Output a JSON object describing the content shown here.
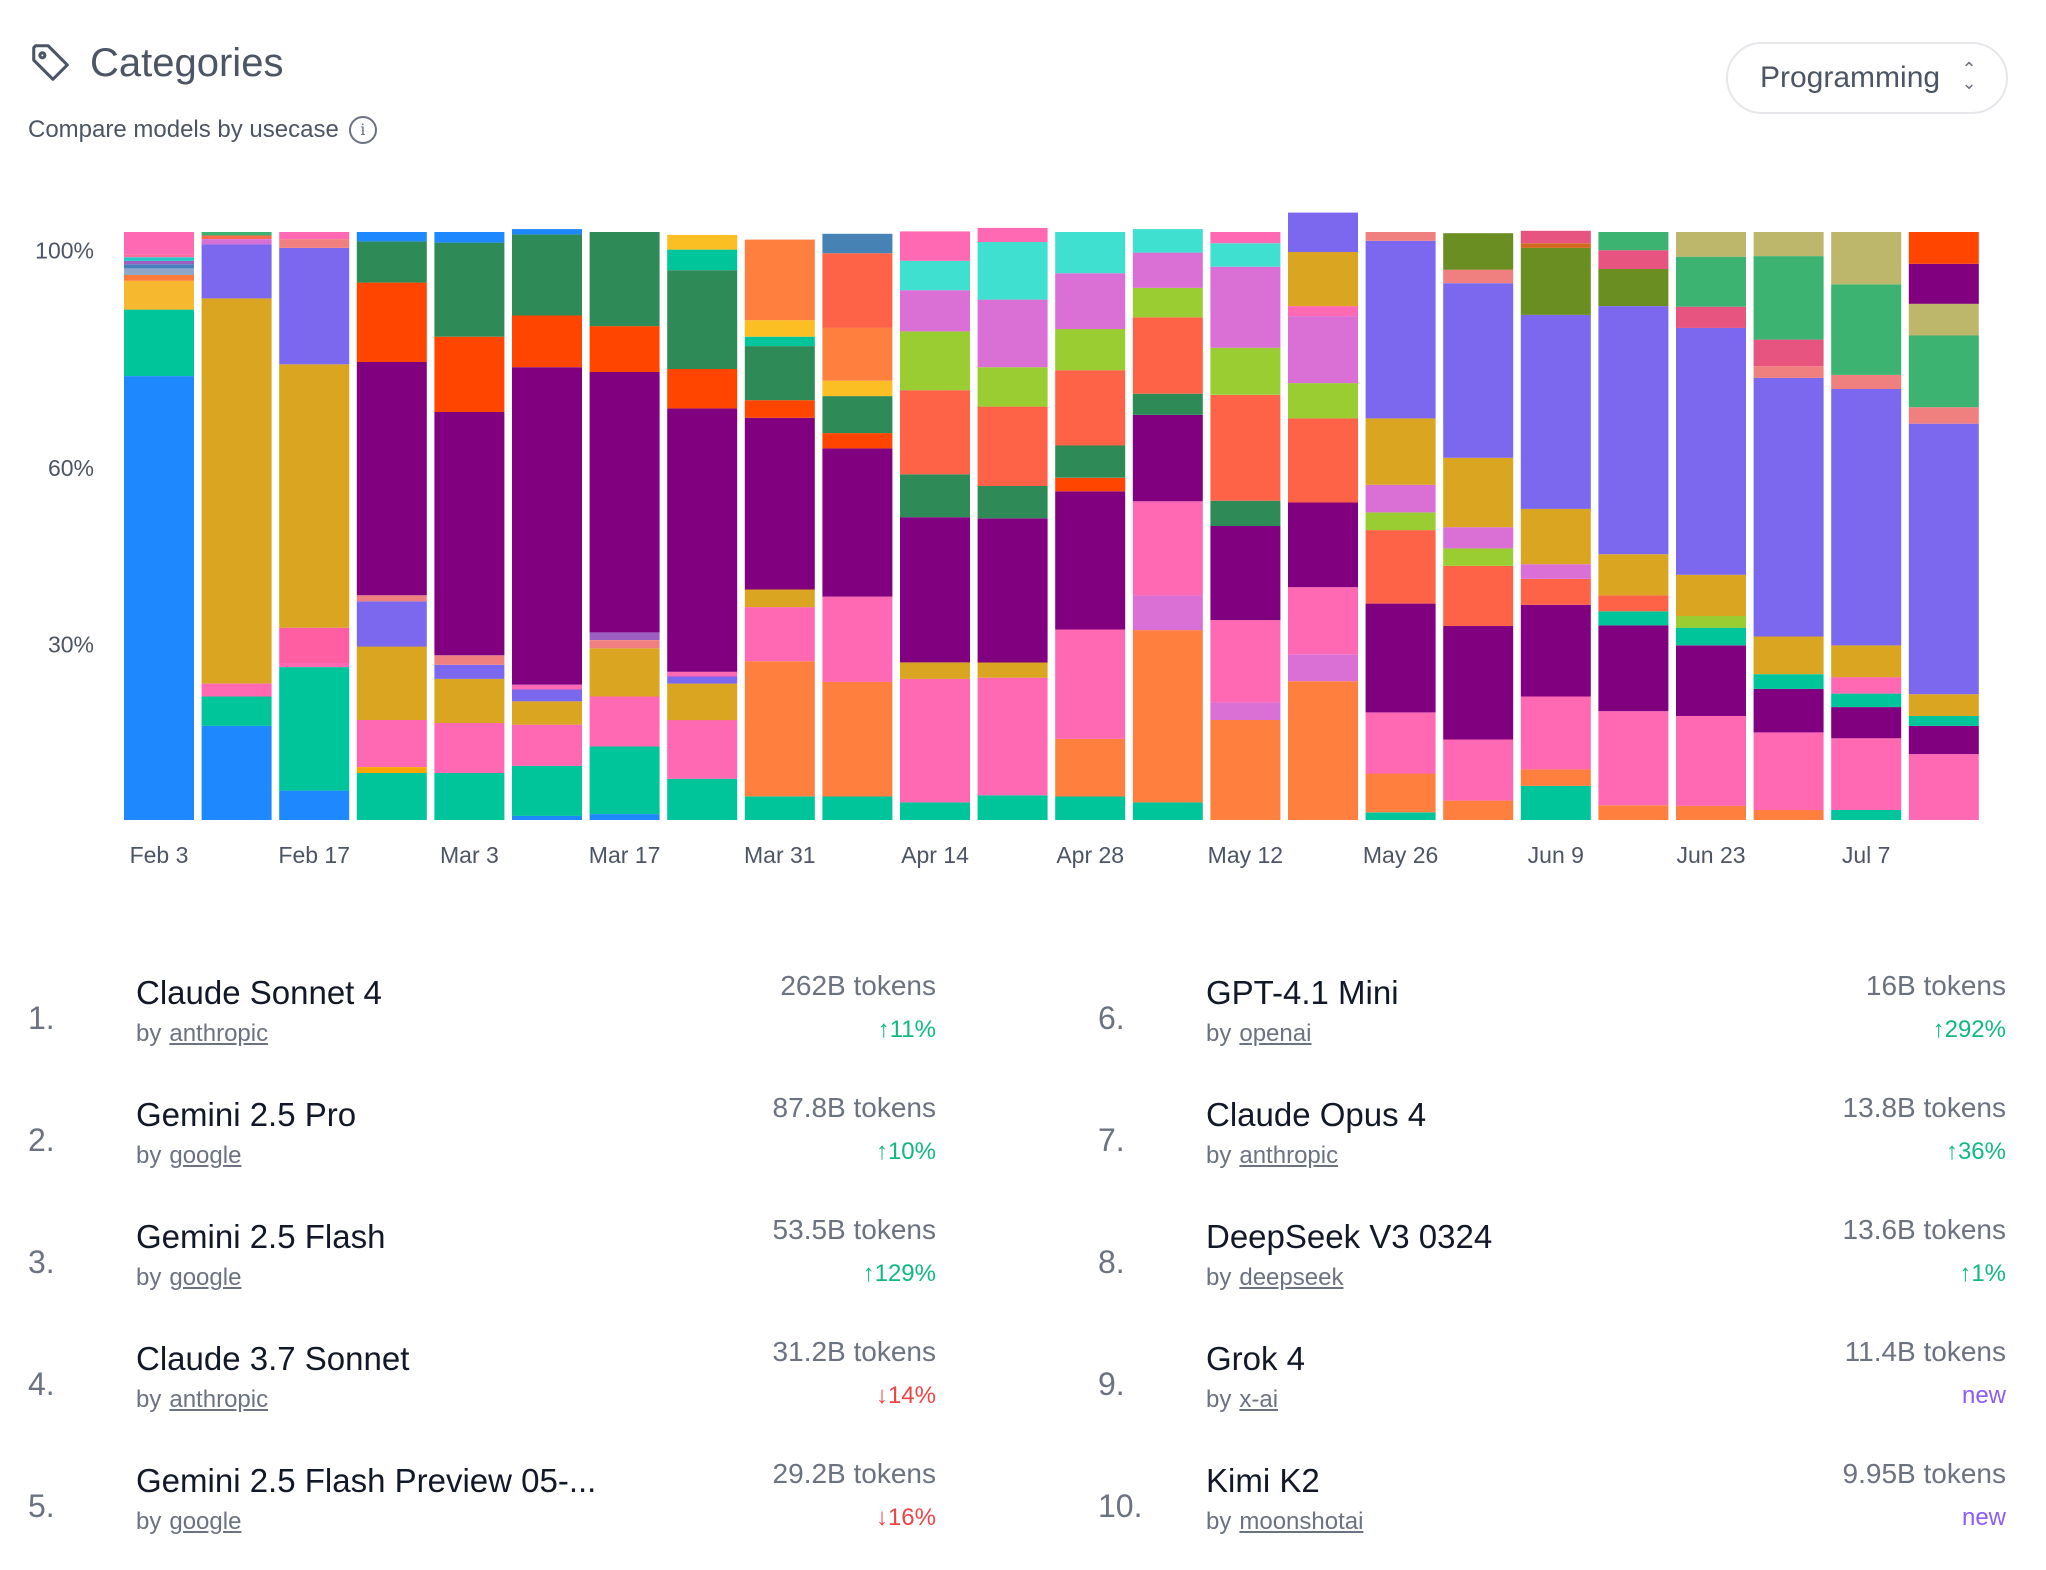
{
  "header": {
    "title": "Categories",
    "subtitle": "Compare models by usecase",
    "tag_icon": "tag-icon",
    "info_icon": "info-icon"
  },
  "category_select": {
    "value": "Programming",
    "icon": "chevron-up-down-icon"
  },
  "chart_data": {
    "type": "bar",
    "stacked": true,
    "ylim": [
      0,
      100
    ],
    "y_ticks": [
      "100%",
      "60%",
      "30%"
    ],
    "y_tick_values": [
      97,
      60,
      30
    ],
    "x_tick_labels": [
      "Feb 3",
      "Feb 17",
      "Mar 3",
      "Mar 17",
      "Mar 31",
      "Apr 14",
      "Apr 28",
      "May 12",
      "May 26",
      "Jun 9",
      "Jun 23",
      "Jul 7"
    ],
    "x_tick_indices": [
      0,
      2,
      4,
      6,
      8,
      10,
      12,
      14,
      16,
      18,
      20,
      22
    ],
    "weeks": 24,
    "columns": [
      [
        [
          "#1e88ff",
          75.5
        ],
        [
          "#00c49a",
          11.3
        ],
        [
          "#f5b82e",
          4.9
        ],
        [
          "#ff7b3a",
          1
        ],
        [
          "#8fa7c9",
          1.1
        ],
        [
          "#4a7fc0",
          0.7
        ],
        [
          "#9a5fc1",
          0.6
        ],
        [
          "#1ec8c8",
          0.6
        ],
        [
          "#ff6a9e",
          0.5
        ],
        [
          "#ff69b4",
          3.8
        ]
      ],
      [
        [
          "#1e88ff",
          16
        ],
        [
          "#00c49a",
          5
        ],
        [
          "#ff69b4",
          2.2
        ],
        [
          "#daa520",
          65.5
        ],
        [
          "#7b68ee",
          9.2
        ],
        [
          "#d670d6",
          0.9
        ],
        [
          "#ff6b4a",
          0.6
        ],
        [
          "#3cb371",
          0.6
        ]
      ],
      [
        [
          "#1e88ff",
          5
        ],
        [
          "#00c49a",
          21
        ],
        [
          "#ff69b4",
          0.7
        ],
        [
          "#ff5fa2",
          6
        ],
        [
          "#daa520",
          44.8
        ],
        [
          "#7b68ee",
          19.8
        ],
        [
          "#f08080",
          1.5
        ],
        [
          "#ff69b4",
          1.2
        ]
      ],
      [
        [
          "#00c49a",
          8
        ],
        [
          "#ffa500",
          1
        ],
        [
          "#ff69b4",
          8
        ],
        [
          "#daa520",
          12.5
        ],
        [
          "#7b68ee",
          7.7
        ],
        [
          "#f08080",
          1
        ],
        [
          "#800080",
          39.7
        ],
        [
          "#ff4500",
          13.5
        ],
        [
          "#2e8b57",
          7
        ],
        [
          "#1e88ff",
          1.6
        ]
      ],
      [
        [
          "#00c49a",
          8
        ],
        [
          "#ff69b4",
          8.5
        ],
        [
          "#daa520",
          7.5
        ],
        [
          "#7b68ee",
          2.4
        ],
        [
          "#f08080",
          1.6
        ],
        [
          "#800080",
          41.4
        ],
        [
          "#ff4500",
          12.8
        ],
        [
          "#2e8b57",
          16
        ],
        [
          "#1e88ff",
          1.8
        ]
      ],
      [
        [
          "#1e88ff",
          0.7
        ],
        [
          "#00c49a",
          8.5
        ],
        [
          "#ff69b4",
          7
        ],
        [
          "#daa520",
          4
        ],
        [
          "#7b68ee",
          2
        ],
        [
          "#ff69b4",
          0.8
        ],
        [
          "#800080",
          54
        ],
        [
          "#ff4500",
          8.8
        ],
        [
          "#2e8b57",
          13.8
        ],
        [
          "#1e88ff",
          0.9
        ]
      ],
      [
        [
          "#1e88ff",
          1
        ],
        [
          "#00c49a",
          11.5
        ],
        [
          "#ff69b4",
          8.5
        ],
        [
          "#daa520",
          8.2
        ],
        [
          "#f08080",
          1.4
        ],
        [
          "#9a5fc1",
          1.3
        ],
        [
          "#800080",
          44.3
        ],
        [
          "#ff4500",
          7.8
        ],
        [
          "#2e8b57",
          16
        ]
      ],
      [
        [
          "#00c49a",
          7
        ],
        [
          "#ff69b4",
          10
        ],
        [
          "#daa520",
          6.2
        ],
        [
          "#7b68ee",
          1.2
        ],
        [
          "#ff69b4",
          0.8
        ],
        [
          "#800080",
          44.8
        ],
        [
          "#ff4500",
          6.7
        ],
        [
          "#2e8b57",
          16.8
        ],
        [
          "#00c49a",
          3.5
        ],
        [
          "#fbbf24",
          2.5
        ]
      ],
      [
        [
          "#00c49a",
          4
        ],
        [
          "#ff7f3f",
          23
        ],
        [
          "#ff69b4",
          9.2
        ],
        [
          "#daa520",
          3
        ],
        [
          "#800080",
          29.2
        ],
        [
          "#ff4500",
          3
        ],
        [
          "#2e8b57",
          9.2
        ],
        [
          "#00c49a",
          1.6
        ],
        [
          "#fbbf24",
          2.8
        ],
        [
          "#ff7f3f",
          13.7
        ]
      ],
      [
        [
          "#00c49a",
          4
        ],
        [
          "#ff7f3f",
          19.5
        ],
        [
          "#ff69b4",
          14.5
        ],
        [
          "#800080",
          25.2
        ],
        [
          "#ff4500",
          2.6
        ],
        [
          "#2e8b57",
          6.3
        ],
        [
          "#fbbf24",
          2.6
        ],
        [
          "#ff7f3f",
          9
        ],
        [
          "#ff6347",
          12.7
        ],
        [
          "#4682b4",
          3.3
        ]
      ],
      [
        [
          "#00c49a",
          3
        ],
        [
          "#ff69b4",
          21
        ],
        [
          "#daa520",
          2.8
        ],
        [
          "#800080",
          24.7
        ],
        [
          "#2e8b57",
          7.3
        ],
        [
          "#ff6347",
          14.3
        ],
        [
          "#9acd32",
          10
        ],
        [
          "#da70d6",
          7
        ],
        [
          "#40e0d0",
          5
        ],
        [
          "#ff69b4",
          5
        ]
      ],
      [
        [
          "#00c49a",
          4.2
        ],
        [
          "#ff69b4",
          20
        ],
        [
          "#daa520",
          2.6
        ],
        [
          "#800080",
          24.5
        ],
        [
          "#2e8b57",
          5.5
        ],
        [
          "#ff6347",
          13.5
        ],
        [
          "#9acd32",
          6.7
        ],
        [
          "#da70d6",
          11.5
        ],
        [
          "#40e0d0",
          9.8
        ],
        [
          "#ff69b4",
          2.4
        ]
      ],
      [
        [
          "#00c49a",
          4
        ],
        [
          "#ff7f3f",
          9.8
        ],
        [
          "#ff69b4",
          18.6
        ],
        [
          "#800080",
          23.5
        ],
        [
          "#ff4500",
          2.3
        ],
        [
          "#2e8b57",
          5.5
        ],
        [
          "#ff6347",
          12.8
        ],
        [
          "#9acd32",
          7
        ],
        [
          "#da70d6",
          9.5
        ],
        [
          "#40e0d0",
          7
        ]
      ],
      [
        [
          "#00c49a",
          3
        ],
        [
          "#ff7f3f",
          29.3
        ],
        [
          "#da70d6",
          5.9
        ],
        [
          "#ff69b4",
          16
        ],
        [
          "#800080",
          14.7
        ],
        [
          "#2e8b57",
          3.6
        ],
        [
          "#ff6347",
          13
        ],
        [
          "#9acd32",
          5
        ],
        [
          "#da70d6",
          6
        ],
        [
          "#40e0d0",
          4
        ]
      ],
      [
        [
          "#ff7f3f",
          17
        ],
        [
          "#da70d6",
          3
        ],
        [
          "#ff69b4",
          14
        ],
        [
          "#800080",
          16
        ],
        [
          "#2e8b57",
          4.3
        ],
        [
          "#ff6347",
          18
        ],
        [
          "#9acd32",
          8
        ],
        [
          "#da70d6",
          13.8
        ],
        [
          "#40e0d0",
          4
        ],
        [
          "#ff69b4",
          1.9
        ]
      ],
      [
        [
          "#ff7f3f",
          23.6
        ],
        [
          "#da70d6",
          4.6
        ],
        [
          "#ff69b4",
          11.4
        ],
        [
          "#800080",
          14.4
        ],
        [
          "#ff6347",
          14.3
        ],
        [
          "#9acd32",
          6
        ],
        [
          "#da70d6",
          11.4
        ],
        [
          "#ff69b4",
          1.7
        ],
        [
          "#daa520",
          9.2
        ],
        [
          "#7b68ee",
          6.7
        ]
      ],
      [
        [
          "#00c49a",
          1.3
        ],
        [
          "#ff7f3f",
          6.6
        ],
        [
          "#ff69b4",
          10.4
        ],
        [
          "#800080",
          18.5
        ],
        [
          "#ff6347",
          12.5
        ],
        [
          "#9acd32",
          3
        ],
        [
          "#da70d6",
          4.7
        ],
        [
          "#daa520",
          11.3
        ],
        [
          "#7b68ee",
          30.2
        ],
        [
          "#f08080",
          1.5
        ]
      ],
      [
        [
          "#ff7f3f",
          3.3
        ],
        [
          "#ff69b4",
          10.4
        ],
        [
          "#800080",
          19.3
        ],
        [
          "#ff6347",
          10.2
        ],
        [
          "#9acd32",
          3
        ],
        [
          "#da70d6",
          3.6
        ],
        [
          "#daa520",
          11.8
        ],
        [
          "#7b68ee",
          29.7
        ],
        [
          "#f08080",
          2.3
        ],
        [
          "#6b8e23",
          6.2
        ]
      ],
      [
        [
          "#00c49a",
          5.8
        ],
        [
          "#ff7f3f",
          2.8
        ],
        [
          "#ff69b4",
          12.4
        ],
        [
          "#800080",
          15.6
        ],
        [
          "#ff6347",
          4.4
        ],
        [
          "#da70d6",
          2.5
        ],
        [
          "#daa520",
          9.4
        ],
        [
          "#7b68ee",
          33
        ],
        [
          "#6b8e23",
          11.4
        ],
        [
          "#d2691e",
          0.8
        ],
        [
          "#e75480",
          2.1
        ]
      ],
      [
        [
          "#ff7f3f",
          2.5
        ],
        [
          "#ff69b4",
          16
        ],
        [
          "#800080",
          14.6
        ],
        [
          "#00c49a",
          2.4
        ],
        [
          "#ff6347",
          2.7
        ],
        [
          "#daa520",
          7
        ],
        [
          "#7b68ee",
          42.2
        ],
        [
          "#6b8e23",
          6.3
        ],
        [
          "#e75480",
          3.2
        ],
        [
          "#3cb371",
          3.1
        ]
      ],
      [
        [
          "#ff7f3f",
          2.4
        ],
        [
          "#ff69b4",
          15.3
        ],
        [
          "#800080",
          12
        ],
        [
          "#00c49a",
          3
        ],
        [
          "#9acd32",
          2
        ],
        [
          "#daa520",
          7
        ],
        [
          "#7b68ee",
          42
        ],
        [
          "#e75480",
          3.6
        ],
        [
          "#3cb371",
          8.5
        ],
        [
          "#bdb76b",
          4.2
        ]
      ],
      [
        [
          "#ff7f3f",
          1.7
        ],
        [
          "#ff69b4",
          13.2
        ],
        [
          "#800080",
          7.4
        ],
        [
          "#00c49a",
          2.5
        ],
        [
          "#daa520",
          6.4
        ],
        [
          "#7b68ee",
          44
        ],
        [
          "#f08080",
          2
        ],
        [
          "#e75480",
          4.5
        ],
        [
          "#3cb371",
          14.2
        ],
        [
          "#bdb76b",
          4.1
        ]
      ],
      [
        [
          "#00c49a",
          1.7
        ],
        [
          "#ff69b4",
          12.2
        ],
        [
          "#800080",
          5.3
        ],
        [
          "#00c49a",
          2.3
        ],
        [
          "#ff69b4",
          2.8
        ],
        [
          "#daa520",
          5.4
        ],
        [
          "#7b68ee",
          43.6
        ],
        [
          "#f08080",
          2.4
        ],
        [
          "#3cb371",
          15.4
        ],
        [
          "#bdb76b",
          8.9
        ]
      ],
      [
        [
          "#ff69b4",
          11.2
        ],
        [
          "#800080",
          4.8
        ],
        [
          "#00c49a",
          1.7
        ],
        [
          "#daa520",
          3.7
        ],
        [
          "#7b68ee",
          46
        ],
        [
          "#f08080",
          2.8
        ],
        [
          "#3cb371",
          12.2
        ],
        [
          "#bdb76b",
          5.4
        ],
        [
          "#800080",
          6.8
        ],
        [
          "#ff4500",
          5.4
        ]
      ]
    ]
  },
  "leaderboard": [
    {
      "rank": "1.",
      "name": "Claude Sonnet 4",
      "by": "by",
      "author": "anthropic",
      "tokens": "262B tokens",
      "arrow": "↑",
      "change": "11%",
      "trend": "up"
    },
    {
      "rank": "2.",
      "name": "Gemini 2.5 Pro",
      "by": "by",
      "author": "google",
      "tokens": "87.8B tokens",
      "arrow": "↑",
      "change": "10%",
      "trend": "up"
    },
    {
      "rank": "3.",
      "name": "Gemini 2.5 Flash",
      "by": "by",
      "author": "google",
      "tokens": "53.5B tokens",
      "arrow": "↑",
      "change": "129%",
      "trend": "up"
    },
    {
      "rank": "4.",
      "name": "Claude 3.7 Sonnet",
      "by": "by",
      "author": "anthropic",
      "tokens": "31.2B tokens",
      "arrow": "↓",
      "change": "14%",
      "trend": "down"
    },
    {
      "rank": "5.",
      "name": "Gemini 2.5 Flash Preview 05-...",
      "by": "by",
      "author": "google",
      "tokens": "29.2B tokens",
      "arrow": "↓",
      "change": "16%",
      "trend": "down"
    },
    {
      "rank": "6.",
      "name": "GPT-4.1 Mini",
      "by": "by",
      "author": "openai",
      "tokens": "16B tokens",
      "arrow": "↑",
      "change": "292%",
      "trend": "up"
    },
    {
      "rank": "7.",
      "name": "Claude Opus 4",
      "by": "by",
      "author": "anthropic",
      "tokens": "13.8B tokens",
      "arrow": "↑",
      "change": "36%",
      "trend": "up"
    },
    {
      "rank": "8.",
      "name": "DeepSeek V3 0324",
      "by": "by",
      "author": "deepseek",
      "tokens": "13.6B tokens",
      "arrow": "↑",
      "change": "1%",
      "trend": "up"
    },
    {
      "rank": "9.",
      "name": "Grok 4",
      "by": "by",
      "author": "x-ai",
      "tokens": "11.4B tokens",
      "arrow": "",
      "change": "new",
      "trend": "new"
    },
    {
      "rank": "10.",
      "name": "Kimi K2",
      "by": "by",
      "author": "moonshotai",
      "tokens": "9.95B tokens",
      "arrow": "",
      "change": "new",
      "trend": "new"
    }
  ]
}
